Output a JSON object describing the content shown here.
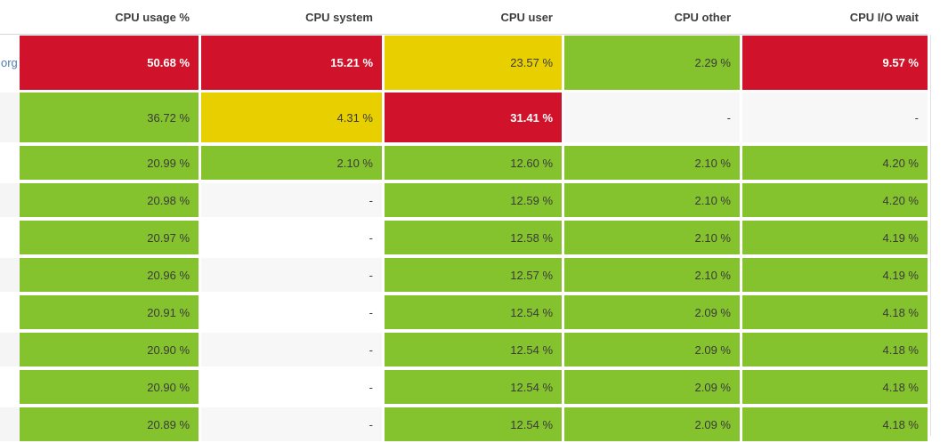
{
  "table": {
    "columns": [
      {
        "label": "CPU usage %"
      },
      {
        "label": "CPU system"
      },
      {
        "label": "CPU user"
      },
      {
        "label": "CPU other"
      },
      {
        "label": "CPU I/O wait"
      }
    ],
    "rows": [
      {
        "name": "org",
        "cells": [
          {
            "value": "50.68 %",
            "status": "critical"
          },
          {
            "value": "15.21 %",
            "status": "critical"
          },
          {
            "value": "23.57 %",
            "status": "warning"
          },
          {
            "value": "2.29 %",
            "status": "ok"
          },
          {
            "value": "9.57 %",
            "status": "critical"
          }
        ]
      },
      {
        "name": "",
        "cells": [
          {
            "value": "36.72 %",
            "status": "ok"
          },
          {
            "value": "4.31 %",
            "status": "warning"
          },
          {
            "value": "31.41 %",
            "status": "critical"
          },
          {
            "value": "-",
            "status": null
          },
          {
            "value": "-",
            "status": null
          }
        ]
      },
      {
        "name": "",
        "cells": [
          {
            "value": "20.99 %",
            "status": "ok"
          },
          {
            "value": "2.10 %",
            "status": "ok"
          },
          {
            "value": "12.60 %",
            "status": "ok"
          },
          {
            "value": "2.10 %",
            "status": "ok"
          },
          {
            "value": "4.20 %",
            "status": "ok"
          }
        ]
      },
      {
        "name": "",
        "cells": [
          {
            "value": "20.98 %",
            "status": "ok"
          },
          {
            "value": "-",
            "status": null
          },
          {
            "value": "12.59 %",
            "status": "ok"
          },
          {
            "value": "2.10 %",
            "status": "ok"
          },
          {
            "value": "4.20 %",
            "status": "ok"
          }
        ]
      },
      {
        "name": "",
        "cells": [
          {
            "value": "20.97 %",
            "status": "ok"
          },
          {
            "value": "-",
            "status": null
          },
          {
            "value": "12.58 %",
            "status": "ok"
          },
          {
            "value": "2.10 %",
            "status": "ok"
          },
          {
            "value": "4.19 %",
            "status": "ok"
          }
        ]
      },
      {
        "name": "",
        "cells": [
          {
            "value": "20.96 %",
            "status": "ok"
          },
          {
            "value": "-",
            "status": null
          },
          {
            "value": "12.57 %",
            "status": "ok"
          },
          {
            "value": "2.10 %",
            "status": "ok"
          },
          {
            "value": "4.19 %",
            "status": "ok"
          }
        ]
      },
      {
        "name": "",
        "cells": [
          {
            "value": "20.91 %",
            "status": "ok"
          },
          {
            "value": "-",
            "status": null
          },
          {
            "value": "12.54 %",
            "status": "ok"
          },
          {
            "value": "2.09 %",
            "status": "ok"
          },
          {
            "value": "4.18 %",
            "status": "ok"
          }
        ]
      },
      {
        "name": "",
        "cells": [
          {
            "value": "20.90 %",
            "status": "ok"
          },
          {
            "value": "-",
            "status": null
          },
          {
            "value": "12.54 %",
            "status": "ok"
          },
          {
            "value": "2.09 %",
            "status": "ok"
          },
          {
            "value": "4.18 %",
            "status": "ok"
          }
        ]
      },
      {
        "name": "",
        "cells": [
          {
            "value": "20.90 %",
            "status": "ok"
          },
          {
            "value": "-",
            "status": null
          },
          {
            "value": "12.54 %",
            "status": "ok"
          },
          {
            "value": "2.09 %",
            "status": "ok"
          },
          {
            "value": "4.18 %",
            "status": "ok"
          }
        ]
      },
      {
        "name": "",
        "cells": [
          {
            "value": "20.89 %",
            "status": "ok"
          },
          {
            "value": "-",
            "status": null
          },
          {
            "value": "12.54 %",
            "status": "ok"
          },
          {
            "value": "2.09 %",
            "status": "ok"
          },
          {
            "value": "4.18 %",
            "status": "ok"
          }
        ]
      }
    ]
  },
  "colors": {
    "critical": "#d0122a",
    "warning": "#e7cf00",
    "ok": "#84c32d",
    "link": "#4f7daf"
  }
}
